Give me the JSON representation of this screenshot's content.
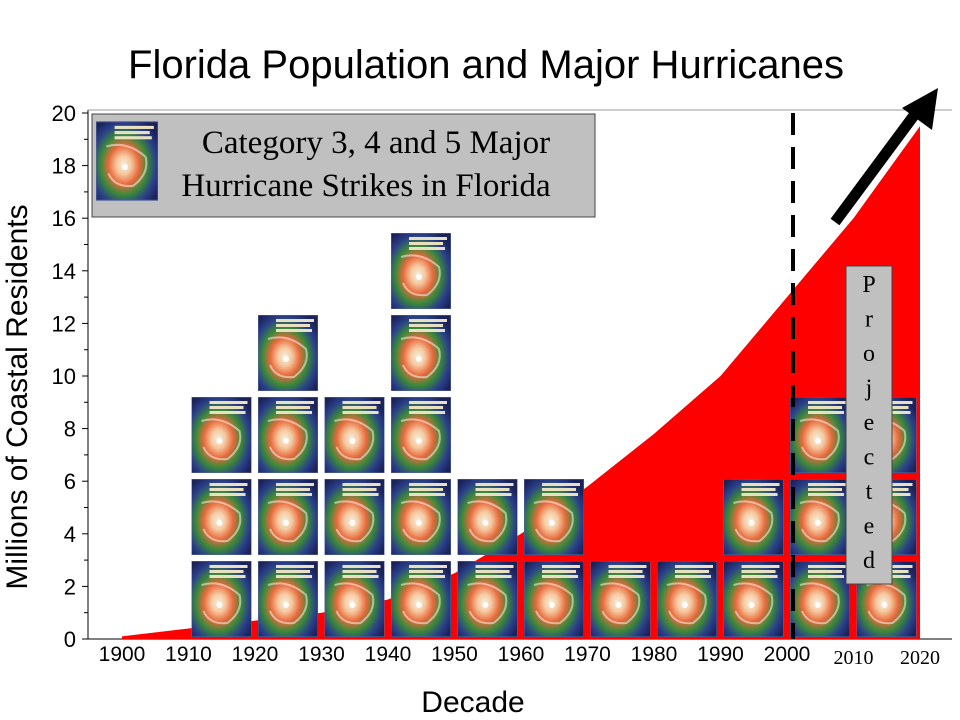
{
  "chart_data": {
    "type": "area",
    "title": "Florida Population and Major Hurricanes",
    "xlabel": "Decade",
    "ylabel": "Millions of Coastal Residents",
    "ylim": [
      0,
      20
    ],
    "y_ticks": [
      0,
      2,
      4,
      6,
      8,
      10,
      12,
      14,
      16,
      18,
      20
    ],
    "x_ticks": [
      "1900",
      "1910",
      "1920",
      "1930",
      "1940",
      "1950",
      "1960",
      "1970",
      "1980",
      "1990",
      "2000",
      "2010",
      "2020"
    ],
    "grid": false,
    "colors": {
      "population_area": "#ff0000",
      "arrow": "#000000",
      "legend_box": "#c0c0c0",
      "projected_line": "#000000"
    },
    "population": {
      "x": [
        1900,
        1910,
        1920,
        1930,
        1940,
        1950,
        1960,
        1970,
        1980,
        1990,
        2000,
        2010,
        2020
      ],
      "values": [
        0.1,
        0.4,
        0.7,
        1.0,
        1.5,
        2.5,
        4.0,
        5.8,
        7.8,
        10.0,
        13.0,
        16.0,
        19.5
      ]
    },
    "projected_from": 2000,
    "projected_label": "Projected",
    "hurricanes": {
      "legend": [
        "Category 3, 4 and 5 Major",
        "Hurricane Strikes in Florida"
      ],
      "x": [
        1910,
        1920,
        1930,
        1940,
        1950,
        1960,
        1970,
        1980,
        1990,
        2000,
        2010
      ],
      "counts": [
        3,
        4,
        3,
        5,
        2,
        2,
        1,
        1,
        2,
        3,
        3
      ]
    },
    "icons": {
      "hurricane": "hurricane-satellite-icon",
      "trend_arrow": "up-right-arrow-icon"
    }
  }
}
